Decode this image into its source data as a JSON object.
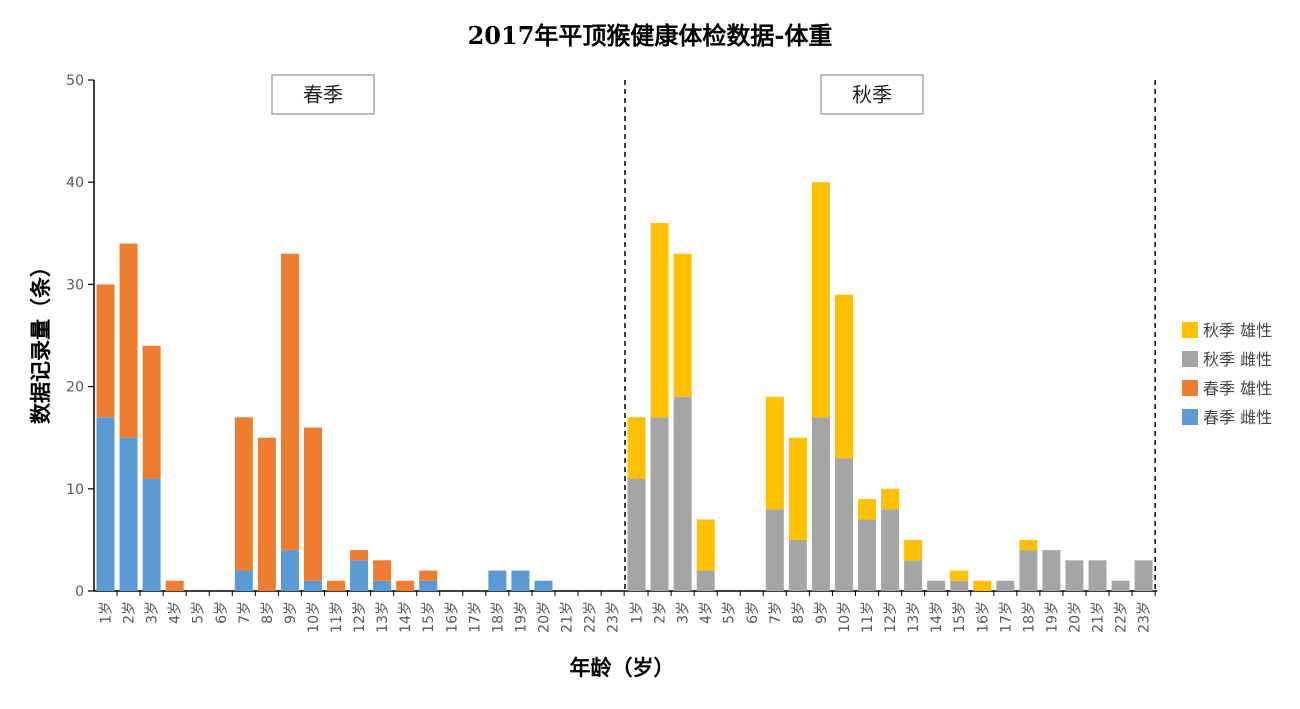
{
  "chart_data": {
    "type": "bar",
    "stacked": true,
    "title": "2017年平顶猴健康体检数据-体重",
    "xlabel": "年龄（岁）",
    "ylabel": "数据记录量（条）",
    "ylim": [
      0,
      50
    ],
    "yticks": [
      0,
      10,
      20,
      30,
      40,
      50
    ],
    "grid": false,
    "legend_position": "right",
    "panels": [
      {
        "label": "春季",
        "categories": [
          "1岁",
          "2岁",
          "3岁",
          "4岁",
          "5岁",
          "6岁",
          "7岁",
          "8岁",
          "9岁",
          "10岁",
          "11岁",
          "12岁",
          "13岁",
          "14岁",
          "15岁",
          "16岁",
          "17岁",
          "18岁",
          "19岁",
          "20岁",
          "21岁",
          "22岁",
          "23岁"
        ],
        "series": [
          {
            "name": "春季 雌性",
            "color": "#5B9BD5",
            "values": [
              17,
              15,
              11,
              0,
              0,
              0,
              2,
              0,
              4,
              1,
              0,
              3,
              1,
              0,
              1,
              0,
              0,
              2,
              2,
              1,
              0,
              0,
              0
            ]
          },
          {
            "name": "春季 雄性",
            "color": "#ED7D31",
            "values": [
              13,
              19,
              13,
              1,
              0,
              0,
              15,
              15,
              29,
              15,
              1,
              1,
              2,
              1,
              1,
              0,
              0,
              0,
              0,
              0,
              0,
              0,
              0
            ]
          }
        ]
      },
      {
        "label": "秋季",
        "categories": [
          "1岁",
          "2岁",
          "3岁",
          "4岁",
          "5岁",
          "6岁",
          "7岁",
          "8岁",
          "9岁",
          "10岁",
          "11岁",
          "12岁",
          "13岁",
          "14岁",
          "15岁",
          "16岁",
          "17岁",
          "18岁",
          "19岁",
          "20岁",
          "21岁",
          "22岁",
          "23岁"
        ],
        "series": [
          {
            "name": "秋季 雌性",
            "color": "#A5A5A5",
            "values": [
              11,
              17,
              19,
              2,
              0,
              0,
              8,
              5,
              17,
              13,
              7,
              8,
              3,
              1,
              1,
              0,
              1,
              4,
              4,
              3,
              3,
              1,
              3
            ]
          },
          {
            "name": "秋季 雄性",
            "color": "#FFC000",
            "values": [
              6,
              19,
              14,
              5,
              0,
              0,
              11,
              10,
              23,
              16,
              2,
              2,
              2,
              0,
              1,
              1,
              0,
              1,
              0,
              0,
              0,
              0,
              0
            ]
          }
        ]
      }
    ],
    "legend_order": [
      "秋季 雄性",
      "秋季 雌性",
      "春季 雄性",
      "春季 雌性"
    ]
  }
}
